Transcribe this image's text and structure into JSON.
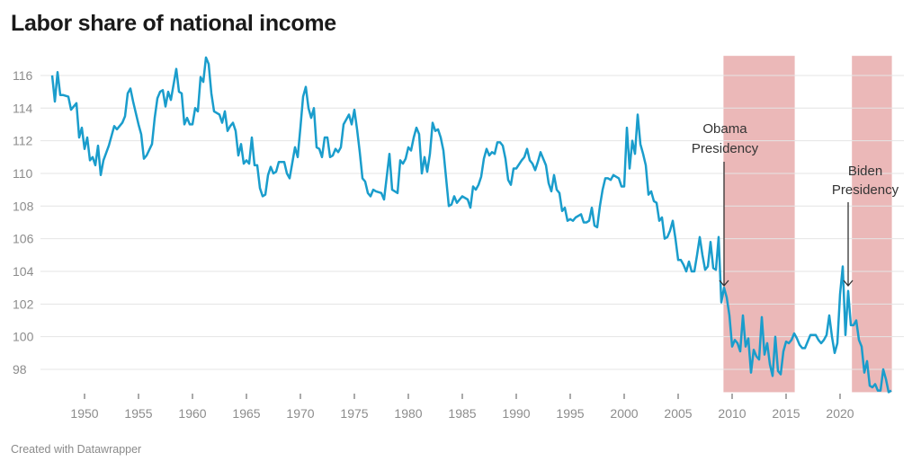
{
  "chart_data": {
    "type": "line",
    "title": "Labor share of national income",
    "xlabel": "",
    "ylabel": "",
    "grid": true,
    "ylim": [
      96.6,
      117.2
    ],
    "xlim": [
      1946.7,
      2025.3
    ],
    "y_ticks": [
      98,
      100,
      102,
      104,
      106,
      108,
      110,
      112,
      114,
      116
    ],
    "x_ticks": [
      1950,
      1955,
      1960,
      1965,
      1970,
      1975,
      1980,
      1985,
      1990,
      1995,
      2000,
      2005,
      2010,
      2015,
      2020
    ],
    "line_color": "#1a9dcc",
    "shade_color": "#ebb8b8",
    "shaded_periods": [
      {
        "label": "Obama Presidency",
        "label_lines": [
          "Obama",
          "Presidency"
        ],
        "start": 2009.2,
        "end": 2015.8,
        "arrow_x": 2009.25
      },
      {
        "label": "Biden Presidency",
        "label_lines": [
          "Biden",
          "Presidency"
        ],
        "start": 2021.1,
        "end": 2024.8,
        "arrow_x": 2020.75
      }
    ],
    "series": [
      {
        "x": [
          1947,
          1947.25,
          1947.5,
          1947.75,
          1948,
          1948.5,
          1948.75,
          1949.25,
          1949.5,
          1949.75,
          1950,
          1950.25,
          1950.5,
          1950.75,
          1951,
          1951.25,
          1951.5,
          1951.75,
          1952.25,
          1952.75,
          1953,
          1953.5,
          1953.75,
          1954,
          1954.25,
          1954.5,
          1955,
          1955.25,
          1955.5,
          1955.75,
          1956.25,
          1956.5,
          1956.75,
          1957,
          1957.25,
          1957.5,
          1957.75,
          1958,
          1958.5,
          1958.75,
          1959,
          1959.25,
          1959.5,
          1959.75,
          1960,
          1960.25,
          1960.5,
          1960.75,
          1961,
          1961.25,
          1961.5,
          1961.75,
          1962,
          1962.5,
          1962.75,
          1963,
          1963.25,
          1963.5,
          1963.75,
          1964,
          1964.25,
          1964.5,
          1964.75,
          1965,
          1965.25,
          1965.5,
          1965.75,
          1966,
          1966.25,
          1966.5,
          1966.75,
          1967,
          1967.25,
          1967.5,
          1967.75,
          1968,
          1968.5,
          1968.75,
          1969,
          1969.5,
          1969.75,
          1970,
          1970.25,
          1970.5,
          1970.75,
          1971,
          1971.25,
          1971.5,
          1971.75,
          1972,
          1972.25,
          1972.5,
          1972.75,
          1973,
          1973.25,
          1973.5,
          1973.75,
          1974,
          1974.5,
          1974.75,
          1975,
          1975.25,
          1975.5,
          1975.75,
          1976,
          1976.25,
          1976.5,
          1976.75,
          1977,
          1977.5,
          1977.75,
          1978,
          1978.25,
          1978.5,
          1978.75,
          1979,
          1979.25,
          1979.5,
          1979.75,
          1980,
          1980.25,
          1980.5,
          1980.75,
          1981,
          1981.25,
          1981.5,
          1981.75,
          1982,
          1982.25,
          1982.5,
          1982.75,
          1983,
          1983.25,
          1983.5,
          1983.75,
          1984,
          1984.25,
          1984.5,
          1984.75,
          1985,
          1985.5,
          1985.75,
          1986,
          1986.25,
          1986.5,
          1986.75,
          1987,
          1987.25,
          1987.5,
          1987.75,
          1988,
          1988.25,
          1988.5,
          1988.75,
          1989,
          1989.25,
          1989.5,
          1989.75,
          1990,
          1990.5,
          1990.75,
          1991,
          1991.25,
          1991.5,
          1991.75,
          1992,
          1992.25,
          1992.5,
          1992.75,
          1993,
          1993.25,
          1993.5,
          1993.75,
          1994,
          1994.25,
          1994.5,
          1994.75,
          1995,
          1995.25,
          1995.5,
          1995.75,
          1996,
          1996.25,
          1996.5,
          1996.75,
          1997,
          1997.25,
          1997.5,
          1997.75,
          1998,
          1998.25,
          1998.5,
          1998.75,
          1999,
          1999.5,
          1999.75,
          2000,
          2000.25,
          2000.5,
          2000.75,
          2001,
          2001.25,
          2001.5,
          2001.75,
          2002,
          2002.25,
          2002.5,
          2002.75,
          2003,
          2003.25,
          2003.5,
          2003.75,
          2004,
          2004.25,
          2004.5,
          2004.75,
          2005,
          2005.25,
          2005.5,
          2005.75,
          2006,
          2006.25,
          2006.5,
          2006.75,
          2007,
          2007.25,
          2007.5,
          2007.75,
          2008,
          2008.25,
          2008.5,
          2008.75,
          2009,
          2009.25,
          2009.5,
          2009.75,
          2010,
          2010.25,
          2010.5,
          2010.75,
          2011,
          2011.25,
          2011.5,
          2011.75,
          2012,
          2012.25,
          2012.5,
          2012.75,
          2013,
          2013.25,
          2013.5,
          2013.75,
          2014,
          2014.25,
          2014.5,
          2014.75,
          2015,
          2015.25,
          2015.5,
          2015.75,
          2016,
          2016.25,
          2016.5,
          2016.75,
          2017,
          2017.25,
          2017.5,
          2017.75,
          2018,
          2018.25,
          2018.5,
          2018.75,
          2019,
          2019.25,
          2019.5,
          2019.75,
          2020,
          2020.25,
          2020.5,
          2020.75,
          2021,
          2021.25,
          2021.5,
          2021.75,
          2022,
          2022.25,
          2022.5,
          2022.75,
          2023,
          2023.25,
          2023.5,
          2023.75,
          2024,
          2024.25,
          2024.5,
          2024.75
        ],
        "y": [
          116.0,
          114.4,
          116.2,
          114.8,
          114.8,
          114.7,
          113.9,
          114.3,
          112.2,
          112.8,
          111.5,
          112.2,
          110.8,
          111.0,
          110.5,
          111.7,
          109.9,
          110.8,
          111.7,
          112.9,
          112.7,
          113.1,
          113.5,
          114.9,
          115.2,
          114.4,
          113.0,
          112.4,
          110.9,
          111.1,
          111.8,
          113.4,
          114.6,
          115.0,
          115.1,
          114.1,
          115.0,
          114.5,
          116.4,
          115.0,
          114.9,
          113.0,
          113.4,
          113.0,
          113.0,
          114.0,
          113.8,
          115.9,
          115.6,
          117.1,
          116.7,
          114.9,
          113.8,
          113.6,
          113.1,
          113.8,
          112.6,
          112.9,
          113.1,
          112.6,
          111.1,
          111.8,
          110.6,
          110.8,
          110.6,
          112.2,
          110.5,
          110.5,
          109.1,
          108.6,
          108.7,
          109.9,
          110.4,
          110.0,
          110.1,
          110.7,
          110.7,
          110.0,
          109.7,
          111.6,
          111.0,
          112.8,
          114.7,
          115.3,
          114.0,
          113.4,
          114.0,
          111.6,
          111.5,
          111.0,
          112.2,
          112.2,
          111.0,
          111.1,
          111.5,
          111.3,
          111.6,
          113.0,
          113.6,
          113.0,
          113.9,
          112.7,
          111.3,
          109.7,
          109.5,
          108.8,
          108.6,
          109.0,
          108.9,
          108.8,
          108.4,
          109.8,
          111.2,
          109.0,
          108.9,
          108.8,
          110.8,
          110.6,
          110.9,
          111.6,
          111.4,
          112.2,
          112.8,
          112.4,
          110.0,
          111.0,
          110.1,
          111.2,
          113.1,
          112.6,
          112.7,
          112.2,
          111.4,
          109.7,
          108.0,
          108.1,
          108.6,
          108.2,
          108.4,
          108.6,
          108.4,
          107.9,
          109.2,
          109.0,
          109.3,
          109.8,
          110.9,
          111.5,
          111.1,
          111.3,
          111.2,
          111.9,
          111.9,
          111.7,
          110.9,
          109.6,
          109.3,
          110.3,
          110.3,
          110.8,
          111.0,
          111.5,
          110.8,
          110.6,
          110.2,
          110.7,
          111.3,
          110.9,
          110.5,
          109.4,
          108.9,
          109.9,
          109.0,
          108.8,
          107.7,
          107.9,
          107.1,
          107.2,
          107.1,
          107.3,
          107.4,
          107.5,
          107.0,
          107.0,
          107.1,
          107.9,
          106.8,
          106.7,
          108.0,
          109.0,
          109.7,
          109.7,
          109.6,
          109.9,
          109.7,
          109.2,
          109.2,
          112.8,
          110.3,
          112.0,
          111.2,
          113.6,
          111.8,
          111.2,
          110.5,
          108.7,
          108.9,
          108.3,
          108.2,
          107.1,
          107.3,
          106.0,
          106.1,
          106.5,
          107.1,
          106.0,
          104.7,
          104.7,
          104.4,
          104.0,
          104.6,
          104.0,
          104.0,
          105.0,
          106.1,
          105.0,
          104.1,
          104.3,
          105.8,
          104.2,
          104.1,
          106.1,
          102.1,
          103.0,
          102.4,
          101.3,
          99.4,
          99.8,
          99.6,
          99.1,
          101.3,
          99.4,
          99.9,
          97.8,
          99.2,
          98.8,
          98.6,
          101.2,
          98.9,
          99.6,
          98.3,
          97.6,
          100.0,
          97.9,
          97.7,
          99.1,
          99.7,
          99.6,
          99.8,
          100.2,
          99.9,
          99.5,
          99.3,
          99.3,
          99.7,
          100.1,
          100.1,
          100.1,
          99.8,
          99.6,
          99.8,
          100.1,
          101.3,
          100.0,
          99.0,
          99.6,
          102.6,
          104.3,
          100.1,
          102.8,
          100.7,
          100.7,
          101.0,
          99.8,
          99.4,
          97.8,
          98.5,
          97.0,
          96.9,
          97.1,
          96.7,
          96.7,
          98.0,
          97.4,
          96.6,
          96.7
        ]
      }
    ]
  },
  "footer": "Created with Datawrapper"
}
